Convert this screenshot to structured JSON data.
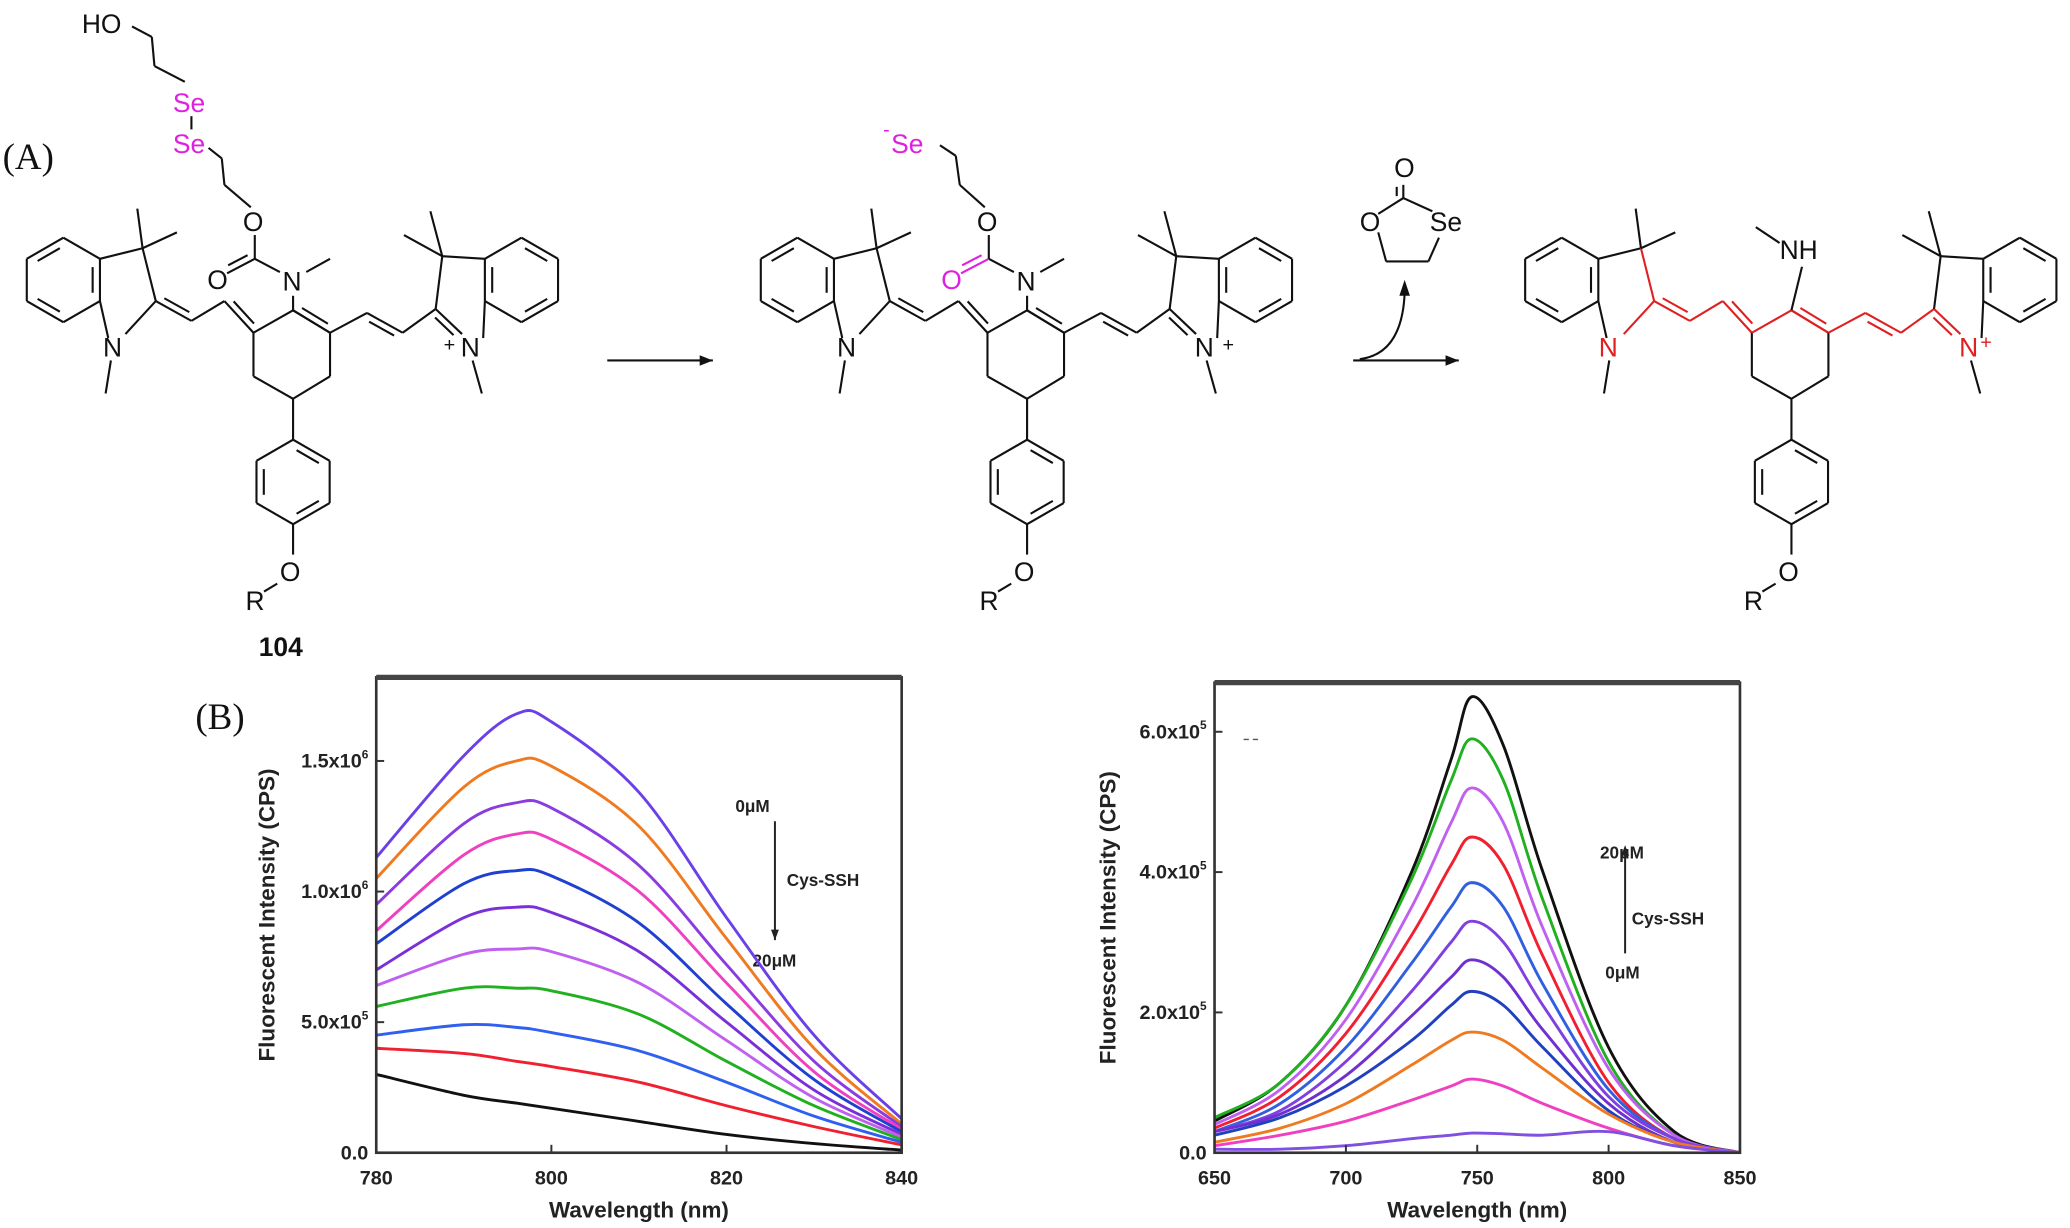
{
  "panels": {
    "a": "(A)",
    "b": "(B)"
  },
  "scheme": {
    "compound_label": "104",
    "s1": {
      "ho": "HO",
      "se1": "Se",
      "se2": "Se",
      "o_ester": "O",
      "o_carbonyl": "O",
      "n_carbamate": "N",
      "n_left": "N",
      "n_right": "N",
      "plus": "+",
      "r": "R",
      "o_ether": "O"
    },
    "s2": {
      "se_anion": "Se",
      "minus": "-",
      "o_ester": "O",
      "o_carbonyl": "O",
      "n_carbamate": "N",
      "n_left": "N",
      "n_right": "N",
      "plus": "+",
      "r": "R",
      "o_ether": "O"
    },
    "byproduct": {
      "o_carbonyl": "O",
      "o_ring": "O",
      "se_ring": "Se"
    },
    "s3": {
      "nh": "NH",
      "n_left": "N",
      "n_right": "N",
      "plus": "+",
      "r": "R",
      "o_ether": "O"
    },
    "colors": {
      "selenium": "#e020e0",
      "conjugation": "#e02020",
      "bond": "#111111"
    }
  },
  "chart_data": [
    {
      "type": "line",
      "title": "",
      "xlabel": "Wavelength (nm)",
      "ylabel": "Fluorescent Intensity (CPS)",
      "xlim": [
        780,
        840
      ],
      "ylim": [
        0,
        1820000
      ],
      "x_ticks": [
        "780",
        "800",
        "820",
        "840"
      ],
      "x_tick_values": [
        780,
        800,
        820,
        840
      ],
      "y_ticks": [
        {
          "base": "0.0",
          "exp": ""
        },
        {
          "base": "5.0x10",
          "exp": "5"
        },
        {
          "base": "1.0x10",
          "exp": "6"
        },
        {
          "base": "1.5x10",
          "exp": "6"
        }
      ],
      "y_tick_values": [
        0,
        500000,
        1000000,
        1500000
      ],
      "grid": false,
      "annotation": {
        "top": "0μM",
        "middle": "Cys-SSH",
        "bottom": "20μM",
        "arrow": "down"
      },
      "x": [
        780,
        790,
        796,
        800,
        810,
        820,
        830,
        840
      ],
      "series": [
        {
          "color": "#6a40e8",
          "values": [
            1130000,
            1520000,
            1680000,
            1650000,
            1380000,
            900000,
            450000,
            130000
          ]
        },
        {
          "color": "#f07a20",
          "values": [
            1050000,
            1400000,
            1500000,
            1480000,
            1250000,
            820000,
            400000,
            110000
          ]
        },
        {
          "color": "#8a3ce0",
          "values": [
            950000,
            1260000,
            1340000,
            1320000,
            1100000,
            720000,
            350000,
            100000
          ]
        },
        {
          "color": "#f040c0",
          "values": [
            850000,
            1140000,
            1220000,
            1200000,
            1000000,
            650000,
            310000,
            90000
          ]
        },
        {
          "color": "#2040d0",
          "values": [
            800000,
            1030000,
            1080000,
            1060000,
            880000,
            570000,
            280000,
            80000
          ]
        },
        {
          "color": "#7a30d8",
          "values": [
            700000,
            900000,
            940000,
            920000,
            770000,
            500000,
            240000,
            70000
          ]
        },
        {
          "color": "#c060f0",
          "values": [
            640000,
            760000,
            780000,
            770000,
            650000,
            430000,
            210000,
            60000
          ]
        },
        {
          "color": "#20b020",
          "values": [
            560000,
            630000,
            630000,
            620000,
            530000,
            350000,
            180000,
            50000
          ]
        },
        {
          "color": "#3060f0",
          "values": [
            450000,
            490000,
            480000,
            460000,
            390000,
            270000,
            140000,
            40000
          ]
        },
        {
          "color": "#f02030",
          "values": [
            400000,
            380000,
            350000,
            330000,
            270000,
            180000,
            100000,
            30000
          ]
        },
        {
          "color": "#111111",
          "values": [
            300000,
            220000,
            190000,
            170000,
            120000,
            70000,
            35000,
            10000
          ]
        }
      ]
    },
    {
      "type": "line",
      "title": "",
      "xlabel": "Wavelength (nm)",
      "ylabel": "Fluorescent Intensity (CPS)",
      "xlim": [
        650,
        850
      ],
      "ylim": [
        0,
        670000
      ],
      "x_ticks": [
        "650",
        "700",
        "750",
        "800",
        "850"
      ],
      "x_tick_values": [
        650,
        700,
        750,
        800,
        850
      ],
      "y_ticks": [
        {
          "base": "0.0",
          "exp": ""
        },
        {
          "base": "2.0x10",
          "exp": "5"
        },
        {
          "base": "4.0x10",
          "exp": "5"
        },
        {
          "base": "6.0x10",
          "exp": "5"
        }
      ],
      "y_tick_values": [
        0,
        200000,
        400000,
        600000
      ],
      "grid": false,
      "annotation": {
        "top": "20μM",
        "middle": "Cys-SSH",
        "bottom": "0μM",
        "arrow": "up"
      },
      "x": [
        650,
        675,
        700,
        725,
        740,
        748,
        760,
        775,
        800,
        825,
        850
      ],
      "series": [
        {
          "color": "#111111",
          "values": [
            45000,
            100000,
            210000,
            400000,
            560000,
            650000,
            580000,
            400000,
            150000,
            30000,
            0
          ]
        },
        {
          "color": "#20b020",
          "values": [
            50000,
            100000,
            210000,
            390000,
            530000,
            590000,
            530000,
            360000,
            130000,
            25000,
            0
          ]
        },
        {
          "color": "#c060f0",
          "values": [
            40000,
            90000,
            190000,
            350000,
            470000,
            520000,
            470000,
            320000,
            120000,
            25000,
            0
          ]
        },
        {
          "color": "#f02030",
          "values": [
            35000,
            80000,
            170000,
            310000,
            410000,
            450000,
            410000,
            280000,
            100000,
            20000,
            0
          ]
        },
        {
          "color": "#3060e0",
          "values": [
            30000,
            70000,
            150000,
            270000,
            350000,
            385000,
            350000,
            240000,
            90000,
            20000,
            0
          ]
        },
        {
          "color": "#8040e0",
          "values": [
            30000,
            60000,
            130000,
            230000,
            300000,
            330000,
            300000,
            210000,
            80000,
            20000,
            0
          ]
        },
        {
          "color": "#7030d0",
          "values": [
            30000,
            55000,
            110000,
            195000,
            250000,
            275000,
            250000,
            175000,
            70000,
            15000,
            0
          ]
        },
        {
          "color": "#2040c0",
          "values": [
            25000,
            50000,
            95000,
            160000,
            210000,
            230000,
            210000,
            150000,
            60000,
            15000,
            0
          ]
        },
        {
          "color": "#f07a20",
          "values": [
            15000,
            35000,
            70000,
            125000,
            160000,
            172000,
            160000,
            120000,
            55000,
            15000,
            0
          ]
        },
        {
          "color": "#f040c0",
          "values": [
            10000,
            25000,
            45000,
            75000,
            95000,
            105000,
            95000,
            70000,
            35000,
            10000,
            0
          ]
        },
        {
          "color": "#8050e0",
          "values": [
            5000,
            5000,
            10000,
            20000,
            25000,
            28000,
            27000,
            25000,
            30000,
            10000,
            0
          ]
        }
      ]
    }
  ]
}
